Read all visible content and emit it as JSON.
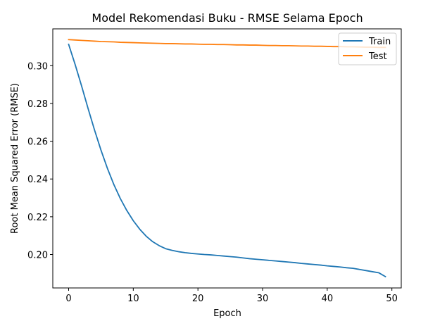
{
  "chart_data": {
    "type": "line",
    "title": "Model Rekomendasi Buku - RMSE Selama Epoch",
    "xlabel": "Epoch",
    "ylabel": "Root Mean Squared Error (RMSE)",
    "xlim": [
      -2.45,
      51.45
    ],
    "ylim": [
      0.1823,
      0.3195
    ],
    "xticks": [
      0,
      10,
      20,
      30,
      40,
      50
    ],
    "yticks": [
      0.2,
      0.22,
      0.24,
      0.26,
      0.28,
      0.3
    ],
    "ytick_labels": [
      "0.20",
      "0.22",
      "0.24",
      "0.26",
      "0.28",
      "0.30"
    ],
    "grid": false,
    "legend_position": "upper right",
    "x": [
      0,
      1,
      2,
      3,
      4,
      5,
      6,
      7,
      8,
      9,
      10,
      11,
      12,
      13,
      14,
      15,
      16,
      17,
      18,
      19,
      20,
      21,
      22,
      23,
      24,
      25,
      26,
      27,
      28,
      29,
      30,
      31,
      32,
      33,
      34,
      35,
      36,
      37,
      38,
      39,
      40,
      41,
      42,
      43,
      44,
      45,
      46,
      47,
      48,
      49
    ],
    "series": [
      {
        "name": "Train",
        "color": "#1f77b4",
        "values": [
          0.3113,
          0.3007,
          0.2893,
          0.2774,
          0.266,
          0.2553,
          0.2456,
          0.237,
          0.2296,
          0.2233,
          0.2179,
          0.2134,
          0.2097,
          0.2068,
          0.2047,
          0.2031,
          0.2022,
          0.2015,
          0.201,
          0.2006,
          0.2003,
          0.2,
          0.1998,
          0.1995,
          0.1992,
          0.1989,
          0.1986,
          0.1982,
          0.1978,
          0.1975,
          0.1972,
          0.1969,
          0.1966,
          0.1963,
          0.196,
          0.1957,
          0.1953,
          0.195,
          0.1947,
          0.1944,
          0.194,
          0.1937,
          0.1934,
          0.193,
          0.1927,
          0.1921,
          0.1915,
          0.1909,
          0.1903,
          0.1883
        ]
      },
      {
        "name": "Test",
        "color": "#ff7f0e",
        "values": [
          0.3138,
          0.3136,
          0.3134,
          0.3132,
          0.313,
          0.3128,
          0.3127,
          0.3126,
          0.3124,
          0.3123,
          0.3122,
          0.3121,
          0.312,
          0.3119,
          0.3118,
          0.3117,
          0.3117,
          0.3116,
          0.3115,
          0.3115,
          0.3114,
          0.3113,
          0.3113,
          0.3112,
          0.3112,
          0.3111,
          0.311,
          0.311,
          0.3109,
          0.3109,
          0.3108,
          0.3107,
          0.3107,
          0.3106,
          0.3106,
          0.3105,
          0.3104,
          0.3104,
          0.3103,
          0.3103,
          0.3102,
          0.3101,
          0.3101,
          0.31,
          0.31,
          0.3099,
          0.3098,
          0.3098,
          0.3097,
          0.3097
        ]
      }
    ]
  }
}
